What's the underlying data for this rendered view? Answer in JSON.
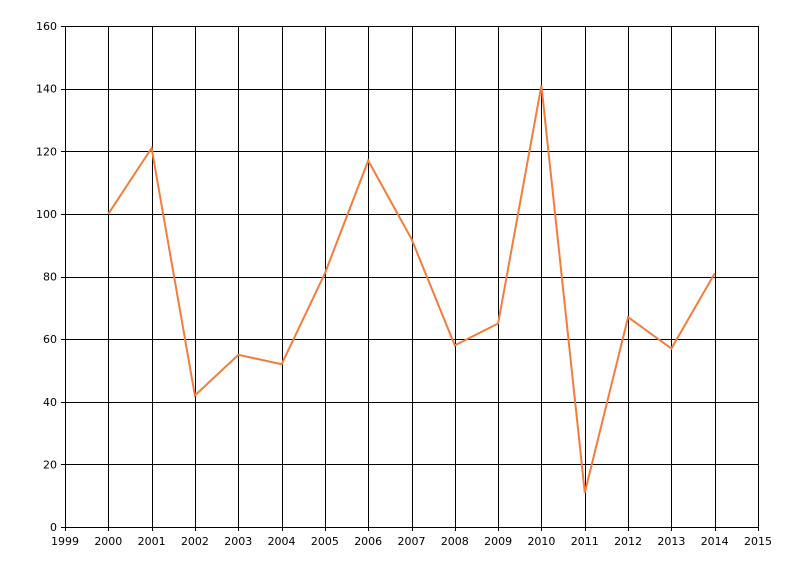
{
  "chart_data": {
    "type": "line",
    "title": "",
    "xlabel": "",
    "ylabel": "",
    "xlim": [
      1999,
      2015
    ],
    "ylim": [
      0,
      160
    ],
    "x_ticks": [
      1999,
      2000,
      2001,
      2002,
      2003,
      2004,
      2005,
      2006,
      2007,
      2008,
      2009,
      2010,
      2011,
      2012,
      2013,
      2014,
      2015
    ],
    "y_ticks": [
      0,
      20,
      40,
      60,
      80,
      100,
      120,
      140,
      160
    ],
    "x_tick_labels": [
      "1999",
      "2000",
      "2001",
      "2002",
      "2003",
      "2004",
      "2005",
      "2006",
      "2007",
      "2008",
      "2009",
      "2010",
      "2011",
      "2012",
      "2013",
      "2014",
      "2015"
    ],
    "y_tick_labels": [
      "0",
      "20",
      "40",
      "60",
      "80",
      "100",
      "120",
      "140",
      "160"
    ],
    "grid": true,
    "legend": "none",
    "series": [
      {
        "color": "#f47c3c",
        "x": [
          2000,
          2001,
          2002,
          2003,
          2004,
          2005,
          2006,
          2007,
          2008,
          2009,
          2010,
          2011,
          2012,
          2013,
          2014
        ],
        "values": [
          100,
          121,
          42,
          55,
          52,
          81,
          117,
          92,
          58,
          65,
          141,
          11,
          67,
          57,
          81
        ]
      }
    ],
    "colors": {
      "grid": "#000000",
      "axis": "#000000",
      "text": "#000000"
    }
  }
}
